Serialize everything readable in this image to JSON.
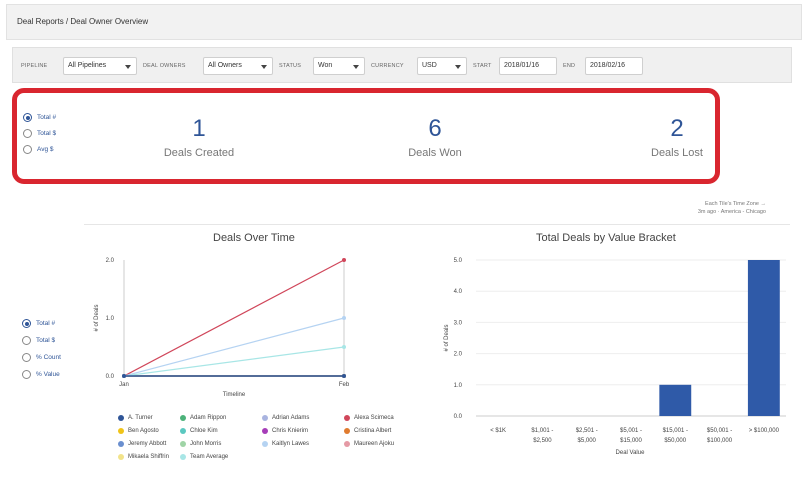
{
  "breadcrumb": "Deal Reports / Deal Owner Overview",
  "filters": {
    "pipeline_label": "PIPELINE",
    "pipeline_value": "All Pipelines",
    "owners_label": "DEAL OWNERS",
    "owners_value": "All Owners",
    "status_label": "STATUS",
    "status_value": "Won",
    "currency_label": "CURRENCY",
    "currency_value": "USD",
    "start_label": "START",
    "start_value": "2018/01/16",
    "end_label": "END",
    "end_value": "2018/02/16"
  },
  "summary": {
    "radios": [
      {
        "label": "Total #",
        "checked": true
      },
      {
        "label": "Total $",
        "checked": false
      },
      {
        "label": "Avg $",
        "checked": false
      }
    ],
    "kpis": [
      {
        "value": "1",
        "label": "Deals Created"
      },
      {
        "value": "6",
        "label": "Deals Won"
      },
      {
        "value": "2",
        "label": "Deals Lost"
      }
    ]
  },
  "timezone_note": {
    "line1": "Each Tile's Time Zone →",
    "line2": "3m ago · America - Chicago"
  },
  "chart_radios": [
    {
      "label": "Total #",
      "checked": true
    },
    {
      "label": "Total $",
      "checked": false
    },
    {
      "label": "% Count",
      "checked": false
    },
    {
      "label": "% Value",
      "checked": false
    }
  ],
  "chart_data": [
    {
      "type": "line",
      "title": "Deals Over Time",
      "xlabel": "Timeline",
      "ylabel": "# of Deals",
      "x": [
        "Jan",
        "Feb"
      ],
      "ylim": [
        0,
        2
      ],
      "yticks": [
        "0.0",
        "1.0",
        "2.0"
      ],
      "series": [
        {
          "name": "A. Turner",
          "color": "#2f5597",
          "values": [
            0,
            0
          ]
        },
        {
          "name": "Adam Rippon",
          "color": "#4cb27a",
          "values": [
            0,
            0
          ]
        },
        {
          "name": "Adrian Adams",
          "color": "#a9b4e0",
          "values": [
            0,
            0
          ]
        },
        {
          "name": "Alexa Scimeca",
          "color": "#d0465a",
          "values": [
            0,
            2
          ]
        },
        {
          "name": "Ben Agosto",
          "color": "#f0c419",
          "values": [
            0,
            0
          ]
        },
        {
          "name": "Chloe Kim",
          "color": "#5bc8c0",
          "values": [
            0,
            0
          ]
        },
        {
          "name": "Chris Knierim",
          "color": "#a63db8",
          "values": [
            0,
            0
          ]
        },
        {
          "name": "Cristina Albert",
          "color": "#e07b2f",
          "values": [
            0,
            0
          ]
        },
        {
          "name": "Jeremy Abbott",
          "color": "#6a8fcf",
          "values": [
            0,
            0
          ]
        },
        {
          "name": "John Morris",
          "color": "#9fd4a6",
          "values": [
            0,
            0
          ]
        },
        {
          "name": "Kaitlyn Lawes",
          "color": "#b5d3f2",
          "values": [
            0,
            1
          ]
        },
        {
          "name": "Maureen Ajoku",
          "color": "#e59aa5",
          "values": [
            0,
            0
          ]
        },
        {
          "name": "Mikaela Shiffrin",
          "color": "#f2e38a",
          "values": [
            0,
            0
          ]
        },
        {
          "name": "Team Average",
          "color": "#a8e6e6",
          "values": [
            0,
            0.5
          ]
        }
      ]
    },
    {
      "type": "bar",
      "title": "Total Deals by Value Bracket",
      "xlabel": "Deal Value",
      "ylabel": "# of Deals",
      "ylim": [
        0,
        5
      ],
      "yticks": [
        "0.0",
        "1.0",
        "2.0",
        "3.0",
        "4.0",
        "5.0"
      ],
      "categories": [
        [
          "< $1K"
        ],
        [
          "$1,001 -",
          "$2,500"
        ],
        [
          "$2,501 -",
          "$5,000"
        ],
        [
          "$5,001 -",
          "$15,000"
        ],
        [
          "$15,001 -",
          "$50,000"
        ],
        [
          "$50,001 -",
          "$100,000"
        ],
        [
          "> $100,000"
        ]
      ],
      "values": [
        0,
        0,
        0,
        0,
        1,
        0,
        5
      ],
      "color": "#2f5aa8"
    }
  ]
}
